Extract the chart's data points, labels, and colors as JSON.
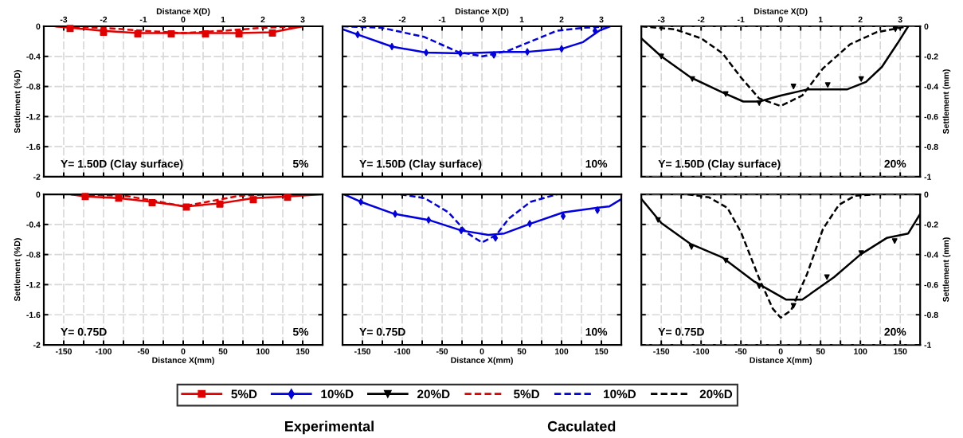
{
  "chart_data": [
    {
      "type": "line",
      "xlim": [
        -3.5,
        3.5
      ],
      "xticks": [
        -3,
        {
          "value": -2.5,
          "label": null
        },
        -2,
        {
          "value": -1.5,
          "label": null
        },
        -1,
        {
          "value": -0.5,
          "label": null
        },
        0,
        {
          "value": 0.5,
          "label": null
        },
        1,
        {
          "value": 1.5,
          "label": null
        },
        2,
        {
          "value": 2.5,
          "label": null
        },
        3
      ],
      "xlabel": "Distance X(D)",
      "ylim": [
        -2,
        0
      ],
      "yticks": [
        0,
        -0.4,
        -0.8,
        -1.2,
        -1.6,
        -2
      ],
      "ylabel": "Settlement (%D)",
      "grid": true,
      "legend": "bottom",
      "annotations": [
        "Y= 1.50D (Clay surface)",
        "5%"
      ],
      "series": [
        {
          "name": "5%D",
          "type": "line",
          "color": "#e00000",
          "line_style": "solid",
          "x": [
            -3.22,
            -2,
            -1.14,
            0,
            1.4,
            2.24,
            3
          ],
          "values": [
            0,
            -0.06,
            -0.09,
            -0.09,
            -0.09,
            -0.08,
            0
          ]
        },
        {
          "type": "scatter",
          "color": "#e00000",
          "marker": "square",
          "x": [
            -2.84,
            -2,
            -1.14,
            -0.3,
            0.56,
            1.4,
            2.24
          ],
          "values": [
            -0.03,
            -0.08,
            -0.1,
            -0.1,
            -0.1,
            -0.1,
            -0.09
          ]
        },
        {
          "name": "5%D",
          "type": "line",
          "color": "#e00000",
          "line_style": "dashed",
          "x": [
            -3.2,
            -2,
            -1,
            0,
            1,
            2,
            3
          ],
          "values": [
            0,
            -0.02,
            -0.06,
            -0.09,
            -0.06,
            -0.02,
            0
          ]
        }
      ]
    },
    {
      "type": "line",
      "xlim": [
        -3.5,
        3.5
      ],
      "xticks": [
        -3,
        {
          "value": -2.5,
          "label": null
        },
        -2,
        {
          "value": -1.5,
          "label": null
        },
        -1,
        {
          "value": -0.5,
          "label": null
        },
        0,
        {
          "value": 0.5,
          "label": null
        },
        1,
        {
          "value": 1.5,
          "label": null
        },
        2,
        {
          "value": 2.5,
          "label": null
        },
        3
      ],
      "xlabel": "Distance X(D)",
      "ylim": [
        -2,
        0
      ],
      "yticks": [
        0,
        -0.4,
        -0.8,
        -1.2,
        -1.6,
        -2
      ],
      "tick_labels": "x",
      "grid": true,
      "legend": "bottom",
      "annotations": [
        "Y= 1.50D (Clay surface)",
        "10%"
      ],
      "series": [
        {
          "name": "10%D",
          "type": "line",
          "color": "#0000e0",
          "line_style": "solid",
          "x": [
            -3.5,
            -3.12,
            -2.26,
            -1.4,
            -0.52,
            0.54,
            1.14,
            2,
            2.54,
            2.94,
            3.22
          ],
          "values": [
            -0.04,
            -0.11,
            -0.27,
            -0.35,
            -0.36,
            -0.34,
            -0.34,
            -0.3,
            -0.21,
            -0.06,
            0
          ]
        },
        {
          "type": "scatter",
          "color": "#0000e0",
          "marker": "diamond",
          "x": [
            -3.12,
            -2.26,
            -1.4,
            -0.54,
            0.3,
            1.14,
            2,
            2.84
          ],
          "values": [
            -0.11,
            -0.27,
            -0.35,
            -0.36,
            -0.38,
            -0.34,
            -0.3,
            -0.06
          ]
        },
        {
          "name": "10%D",
          "type": "line",
          "color": "#0000e0",
          "line_style": "dashed",
          "x": [
            -3.5,
            -2.52,
            -1.46,
            -0.6,
            0.02,
            0.68,
            1.88,
            2.54,
            3.22
          ],
          "values": [
            0,
            -0.02,
            -0.14,
            -0.34,
            -0.4,
            -0.32,
            -0.06,
            -0.02,
            0
          ]
        }
      ]
    },
    {
      "type": "line",
      "xlim": [
        -3.5,
        3.5
      ],
      "xticks": [
        -3,
        {
          "value": -2.5,
          "label": null
        },
        -2,
        {
          "value": -1.5,
          "label": null
        },
        -1,
        {
          "value": -0.5,
          "label": null
        },
        0,
        {
          "value": 0.5,
          "label": null
        },
        1,
        {
          "value": 1.5,
          "label": null
        },
        2,
        {
          "value": 2.5,
          "label": null
        },
        3
      ],
      "xlabel": "Distance X(D)",
      "y2lim": [
        -1,
        0
      ],
      "y2ticks": [
        0,
        -0.2,
        -0.4,
        -0.6,
        -0.8,
        -1
      ],
      "y2label": "Settlement (mm)",
      "grid": true,
      "legend": "bottom",
      "annotations": [
        "Y= 1.50D (Clay surface)",
        "20%"
      ],
      "series": [
        {
          "name": "20%D",
          "type": "line",
          "axis": "y2",
          "color": "#000000",
          "line_style": "solid",
          "x": [
            -3.5,
            -3,
            -2.26,
            -1.46,
            -0.94,
            -0.54,
            0,
            0.66,
            1.66,
            2.14,
            2.54,
            2.94,
            3.2
          ],
          "values": [
            -0.08,
            -0.2,
            -0.34,
            -0.44,
            -0.5,
            -0.5,
            -0.46,
            -0.42,
            -0.42,
            -0.37,
            -0.27,
            -0.11,
            0
          ]
        },
        {
          "type": "scatter",
          "axis": "y2",
          "color": "#000000",
          "marker": "triangle",
          "x": [
            -3,
            -2.22,
            -1.38,
            -0.54,
            0.32,
            1.18,
            2.02,
            2.88
          ],
          "values": [
            -0.2,
            -0.35,
            -0.45,
            -0.51,
            -0.4,
            -0.39,
            -0.35,
            -0.02
          ]
        },
        {
          "name": "20%D",
          "type": "line",
          "axis": "y2",
          "color": "#000000",
          "line_style": "dashed",
          "x": [
            -3.5,
            -2.66,
            -2,
            -1.46,
            -1,
            -0.54,
            0,
            0.54,
            1.06,
            1.74,
            2.4,
            3.2
          ],
          "values": [
            0,
            -0.02,
            -0.08,
            -0.18,
            -0.34,
            -0.48,
            -0.53,
            -0.46,
            -0.28,
            -0.12,
            -0.04,
            0
          ]
        }
      ]
    },
    {
      "type": "line",
      "xlim": [
        -175,
        175
      ],
      "xticks": [
        -150,
        {
          "value": -125,
          "label": null
        },
        -100,
        {
          "value": -75,
          "label": null
        },
        -50,
        {
          "value": -25,
          "label": null
        },
        0,
        {
          "value": 25,
          "label": null
        },
        50,
        {
          "value": 75,
          "label": null
        },
        100,
        {
          "value": 125,
          "label": null
        },
        150
      ],
      "xlabel": "Distance X(mm)",
      "ylim": [
        -2,
        0
      ],
      "yticks": [
        0,
        -0.4,
        -0.8,
        -1.2,
        -1.6,
        -2
      ],
      "ylabel": "Settlement (%D)",
      "grid": true,
      "annotations": [
        "Y= 0.75D",
        "5%"
      ],
      "series": [
        {
          "type": "line",
          "color": "#e00000",
          "line_style": "solid",
          "x": [
            -141,
            -123,
            -81,
            -39,
            4,
            46,
            88,
            131,
            173
          ],
          "values": [
            0,
            -0.03,
            -0.05,
            -0.1,
            -0.16,
            -0.12,
            -0.05,
            -0.03,
            0
          ]
        },
        {
          "type": "scatter",
          "color": "#e00000",
          "marker": "square",
          "x": [
            -123,
            -81,
            -39,
            4,
            46,
            88,
            131
          ],
          "values": [
            -0.03,
            -0.05,
            -0.11,
            -0.17,
            -0.13,
            -0.07,
            -0.04
          ]
        },
        {
          "type": "line",
          "color": "#e00000",
          "line_style": "dashed",
          "x": [
            -141,
            -72,
            -29,
            0,
            30,
            70,
            104
          ],
          "values": [
            0,
            -0.02,
            -0.1,
            -0.16,
            -0.1,
            -0.02,
            0
          ]
        }
      ]
    },
    {
      "type": "line",
      "xlim": [
        -175,
        175
      ],
      "xticks": [
        -150,
        {
          "value": -125,
          "label": null
        },
        -100,
        {
          "value": -75,
          "label": null
        },
        -50,
        {
          "value": -25,
          "label": null
        },
        0,
        {
          "value": 25,
          "label": null
        },
        50,
        {
          "value": 75,
          "label": null
        },
        100,
        {
          "value": 125,
          "label": null
        },
        150
      ],
      "xlabel": "Distance X(mm)",
      "ylim": [
        -2,
        0
      ],
      "yticks": [
        0,
        -0.4,
        -0.8,
        -1.2,
        -1.6,
        -2
      ],
      "tick_labels": "x",
      "grid": true,
      "annotations": [
        "Y= 0.75D",
        "10%"
      ],
      "series": [
        {
          "type": "line",
          "color": "#0000e0",
          "line_style": "solid",
          "x": [
            -173,
            -152,
            -110,
            -67,
            -26,
            8,
            28,
            61,
            102,
            144,
            160,
            174
          ],
          "values": [
            0,
            -0.1,
            -0.26,
            -0.34,
            -0.48,
            -0.54,
            -0.52,
            -0.39,
            -0.24,
            -0.18,
            -0.16,
            -0.07
          ]
        },
        {
          "type": "scatter",
          "color": "#0000e0",
          "marker": "diamond",
          "x": [
            -152,
            -109,
            -67,
            -26,
            17,
            60,
            102,
            145
          ],
          "values": [
            -0.1,
            -0.26,
            -0.34,
            -0.48,
            -0.58,
            -0.39,
            -0.29,
            -0.21
          ]
        },
        {
          "type": "line",
          "color": "#0000e0",
          "line_style": "dashed",
          "x": [
            -102,
            -72,
            -42,
            -19,
            0,
            18,
            34,
            61,
            94
          ],
          "values": [
            0,
            -0.05,
            -0.24,
            -0.51,
            -0.64,
            -0.54,
            -0.32,
            -0.1,
            0
          ]
        }
      ]
    },
    {
      "type": "line",
      "xlim": [
        -175,
        175
      ],
      "xticks": [
        -150,
        {
          "value": -125,
          "label": null
        },
        -100,
        {
          "value": -75,
          "label": null
        },
        -50,
        {
          "value": -25,
          "label": null
        },
        0,
        {
          "value": 25,
          "label": null
        },
        50,
        {
          "value": 75,
          "label": null
        },
        100,
        {
          "value": 125,
          "label": null
        },
        150
      ],
      "xlabel": "Distance X(mm)",
      "y2lim": [
        -1,
        0
      ],
      "y2ticks": [
        0,
        -0.2,
        -0.4,
        -0.6,
        -0.8,
        -1
      ],
      "y2label": "Settlement (mm)",
      "grid": true,
      "annotations": [
        "Y= 0.75D",
        "20%"
      ],
      "series": [
        {
          "type": "line",
          "axis": "y2",
          "color": "#000000",
          "line_style": "solid",
          "x": [
            -175,
            -150,
            -113,
            -73,
            -33,
            7,
            27,
            67,
            100,
            133,
            160,
            175
          ],
          "values": [
            -0.03,
            -0.19,
            -0.33,
            -0.42,
            -0.58,
            -0.7,
            -0.7,
            -0.55,
            -0.4,
            -0.29,
            -0.26,
            -0.13
          ]
        },
        {
          "type": "scatter",
          "axis": "y2",
          "color": "#000000",
          "marker": "triangle",
          "x": [
            -154,
            -112,
            -69,
            -27,
            16,
            58,
            101,
            143
          ],
          "values": [
            -0.17,
            -0.35,
            -0.44,
            -0.61,
            -0.74,
            -0.55,
            -0.39,
            -0.31
          ]
        },
        {
          "type": "line",
          "axis": "y2",
          "color": "#000000",
          "line_style": "dashed",
          "x": [
            -117,
            -90,
            -67,
            -50,
            -27,
            -10,
            0,
            13,
            33,
            53,
            73,
            93,
            117
          ],
          "values": [
            0,
            -0.02,
            -0.09,
            -0.25,
            -0.56,
            -0.76,
            -0.82,
            -0.77,
            -0.53,
            -0.23,
            -0.07,
            -0.01,
            0
          ]
        }
      ]
    },
    {
      "type": "other",
      "annotations": [
        "Experimental",
        "Caculated"
      ]
    }
  ]
}
